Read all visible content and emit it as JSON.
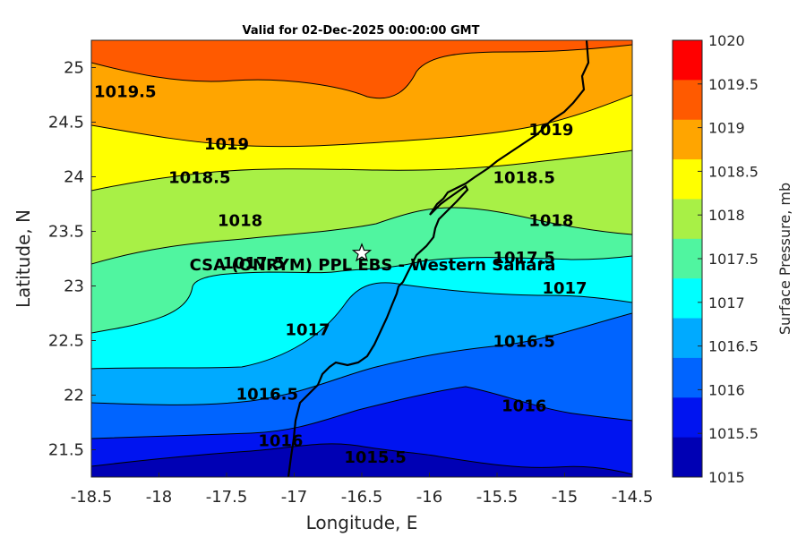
{
  "title": "Valid for 02-Dec-2025 00:00:00 GMT",
  "map": {
    "x_label": "Longitude, E",
    "y_label": "Latitude, N",
    "xlim": [
      -18.5,
      -14.5
    ],
    "ylim": [
      21.25,
      25.25
    ],
    "x_ticks": [
      "-18.5",
      "-18",
      "-17.5",
      "-17",
      "-16.5",
      "-16",
      "-15.5",
      "-15",
      "-14.5"
    ],
    "y_ticks": [
      "21.5",
      "22",
      "22.5",
      "23",
      "23.5",
      "24",
      "24.5",
      "25"
    ],
    "station": {
      "label": "CSA (ONRYM) PPL EBS - Western Sahara",
      "lon": -16.5,
      "lat": 23.3,
      "marker": "white-star"
    },
    "contour_labels": [
      {
        "text": "1019.5",
        "lon": -18.25,
        "lat": 24.78
      },
      {
        "text": "1019",
        "lon": -17.5,
        "lat": 24.3
      },
      {
        "text": "1019",
        "lon": -15.1,
        "lat": 24.43
      },
      {
        "text": "1018.5",
        "lon": -17.7,
        "lat": 23.99
      },
      {
        "text": "1018.5",
        "lon": -15.3,
        "lat": 23.99
      },
      {
        "text": "1018",
        "lon": -17.4,
        "lat": 23.6
      },
      {
        "text": "1018",
        "lon": -15.1,
        "lat": 23.6
      },
      {
        "text": "1017.5",
        "lon": -17.3,
        "lat": 23.21
      },
      {
        "text": "1017.5",
        "lon": -15.3,
        "lat": 23.26
      },
      {
        "text": "1017",
        "lon": -15.0,
        "lat": 22.98
      },
      {
        "text": "1017",
        "lon": -16.9,
        "lat": 22.6
      },
      {
        "text": "1016.5",
        "lon": -15.3,
        "lat": 22.49
      },
      {
        "text": "1016.5",
        "lon": -17.2,
        "lat": 22.01
      },
      {
        "text": "1016",
        "lon": -15.3,
        "lat": 21.9
      },
      {
        "text": "1016",
        "lon": -17.1,
        "lat": 21.58
      },
      {
        "text": "1015.5",
        "lon": -16.4,
        "lat": 21.43
      }
    ]
  },
  "colorbar": {
    "title": "Surface Pressure, mb",
    "ticks": [
      "1020",
      "1019.5",
      "1019",
      "1018.5",
      "1018",
      "1017.5",
      "1017",
      "1016.5",
      "1016",
      "1015.5",
      "1015"
    ],
    "colors": [
      "#ff0000",
      "#ff5a00",
      "#ffa500",
      "#ffff00",
      "#a8f046",
      "#50f5a0",
      "#00ffff",
      "#00aaff",
      "#0064ff",
      "#0014f0",
      "#0000b4"
    ]
  },
  "colors": {
    "band_1015_0": "#0000b4",
    "band_1015_5": "#0014f0",
    "band_1016_0": "#0064ff",
    "band_1016_5": "#00aaff",
    "band_1017_0": "#00ffff",
    "band_1017_5": "#50f5a0",
    "band_1018_0": "#a8f046",
    "band_1018_5": "#ffff00",
    "band_1019_0": "#ffa500",
    "band_1019_5": "#ff5a00"
  }
}
